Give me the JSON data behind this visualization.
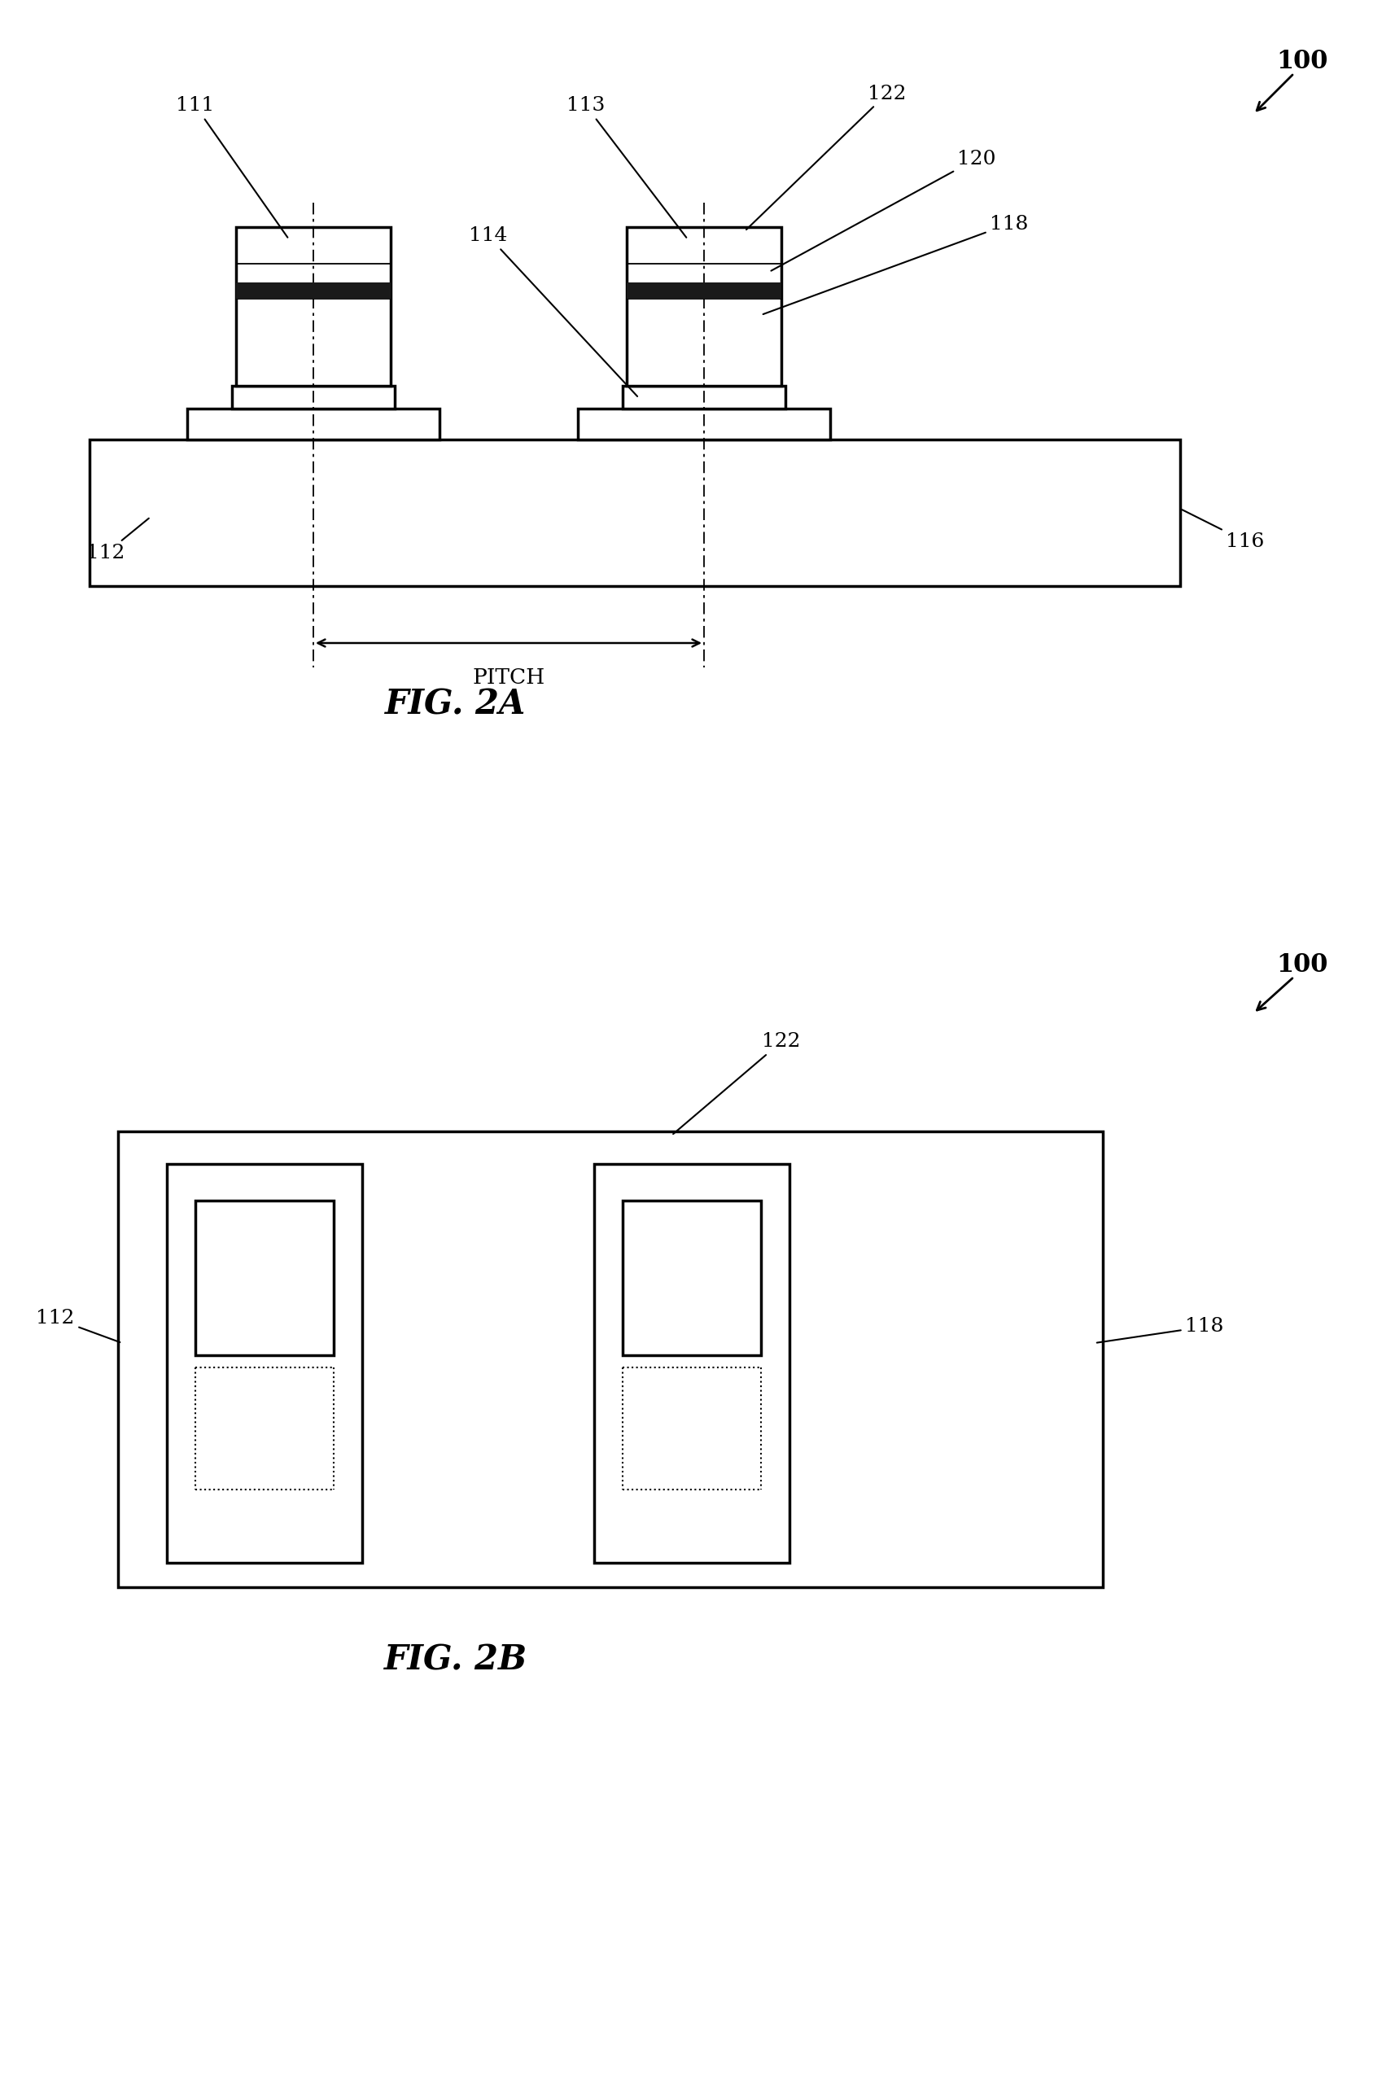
{
  "fig_width": 17.15,
  "fig_height": 25.8,
  "bg_color": "#ffffff",
  "labels": {
    "100a": "100",
    "111": "111",
    "112a": "112",
    "113": "113",
    "114": "114",
    "116": "116",
    "118a": "118",
    "120": "120",
    "122a": "122",
    "100b": "100",
    "112b": "112",
    "118b": "118",
    "122b": "122"
  },
  "fig2a_label": "FIG. 2A",
  "fig2b_label": "FIG. 2B"
}
